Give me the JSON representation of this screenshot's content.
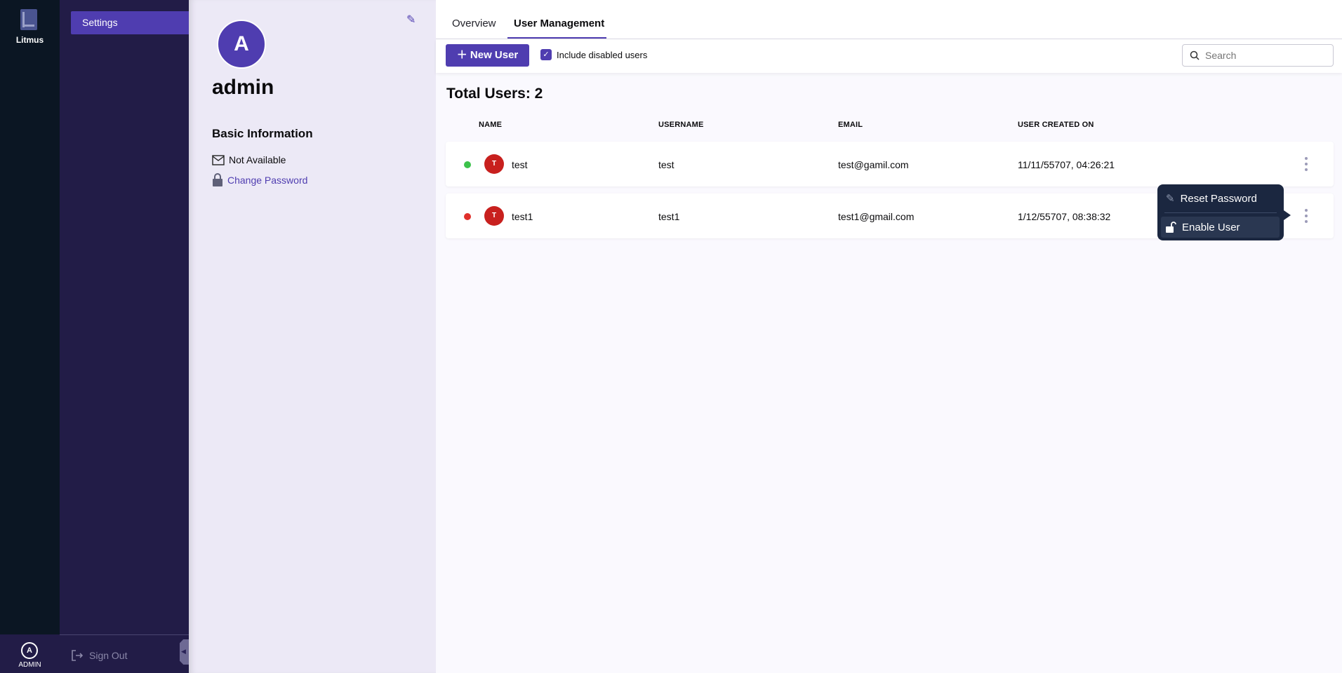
{
  "rail": {
    "logo_text": "Litmus",
    "avatar_initial": "A",
    "user_label": "ADMIN"
  },
  "sidebar": {
    "items": [
      {
        "label": "Settings",
        "active": true
      }
    ],
    "sign_out": "Sign Out"
  },
  "profile": {
    "initial": "A",
    "name": "admin",
    "section_title": "Basic Information",
    "email": "Not Available",
    "change_password": "Change Password"
  },
  "tabs": [
    {
      "label": "Overview",
      "active": false
    },
    {
      "label": "User Management",
      "active": true
    }
  ],
  "toolbar": {
    "new_user": "New User",
    "include_disabled_label": "Include disabled users",
    "include_disabled_checked": true,
    "search_placeholder": "Search",
    "search_value": ""
  },
  "total_users": "Total Users: 2",
  "table": {
    "columns": [
      "NAME",
      "USERNAME",
      "EMAIL",
      "USER CREATED ON"
    ],
    "rows": [
      {
        "status": "active",
        "status_color": "#3cc24b",
        "initial": "T",
        "name": "test",
        "username": "test",
        "email": "test@gamil.com",
        "created": "11/11/55707, 04:26:21"
      },
      {
        "status": "disabled",
        "status_color": "#e0302b",
        "initial": "T",
        "name": "test1",
        "username": "test1",
        "email": "test1@gmail.com",
        "created": "1/12/55707, 08:38:32"
      }
    ]
  },
  "row_menu": {
    "items": [
      "Reset Password",
      "Enable User"
    ]
  },
  "colors": {
    "accent": "#4f3db0",
    "sidebar": "#221c47",
    "rail": "#0b1623",
    "menu": "#1b2740"
  }
}
